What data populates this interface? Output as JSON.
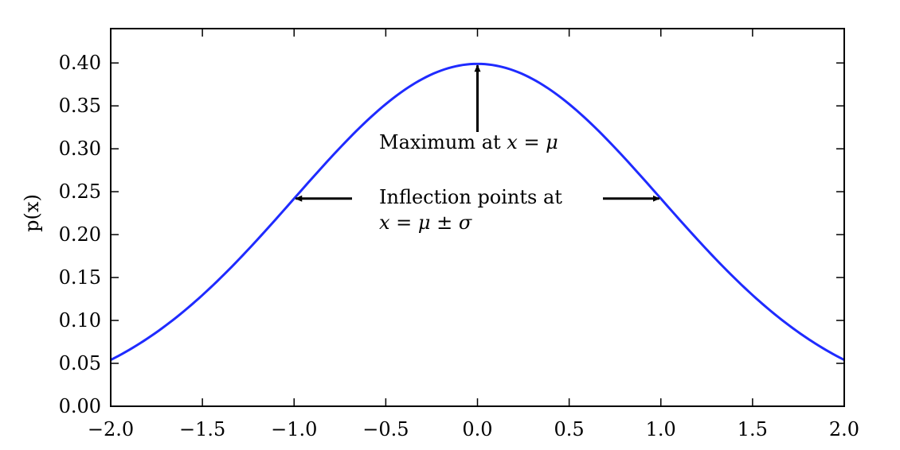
{
  "chart_data": {
    "type": "line",
    "title": "",
    "xlabel": "",
    "ylabel": "p(x)",
    "xlim": [
      -2.0,
      2.0
    ],
    "ylim": [
      0.0,
      0.44
    ],
    "x_ticks": [
      -2.0,
      -1.5,
      -1.0,
      -0.5,
      0.0,
      0.5,
      1.0,
      1.5,
      2.0
    ],
    "x_tick_labels": [
      "−2.0",
      "−1.5",
      "−1.0",
      "−0.5",
      "0.0",
      "0.5",
      "1.0",
      "1.5",
      "2.0"
    ],
    "y_ticks": [
      0.0,
      0.05,
      0.1,
      0.15,
      0.2,
      0.25,
      0.3,
      0.35,
      0.4
    ],
    "y_tick_labels": [
      "0.00",
      "0.05",
      "0.10",
      "0.15",
      "0.20",
      "0.25",
      "0.30",
      "0.35",
      "0.40"
    ],
    "grid": false,
    "series": [
      {
        "color": "#1f2bff",
        "x": [
          -2.0,
          -1.8,
          -1.6,
          -1.4,
          -1.2,
          -1.0,
          -0.8,
          -0.6,
          -0.4,
          -0.2,
          0.0,
          0.2,
          0.4,
          0.6,
          0.8,
          1.0,
          1.2,
          1.4,
          1.6,
          1.8,
          2.0
        ],
        "y": [
          0.054,
          0.079,
          0.111,
          0.15,
          0.194,
          0.242,
          0.29,
          0.333,
          0.368,
          0.391,
          0.399,
          0.391,
          0.368,
          0.333,
          0.29,
          0.242,
          0.194,
          0.15,
          0.111,
          0.079,
          0.054
        ]
      }
    ],
    "annotations": {
      "maximum": {
        "text_prefix": "Maximum at ",
        "text_math": "x = μ",
        "arrow_target": [
          0.0,
          0.399
        ]
      },
      "inflection": {
        "text_line1": "Inflection points at",
        "text_line2_math": "x = μ ± σ",
        "arrow_targets": [
          [
            -1.0,
            0.242
          ],
          [
            1.0,
            0.242
          ]
        ]
      }
    }
  }
}
